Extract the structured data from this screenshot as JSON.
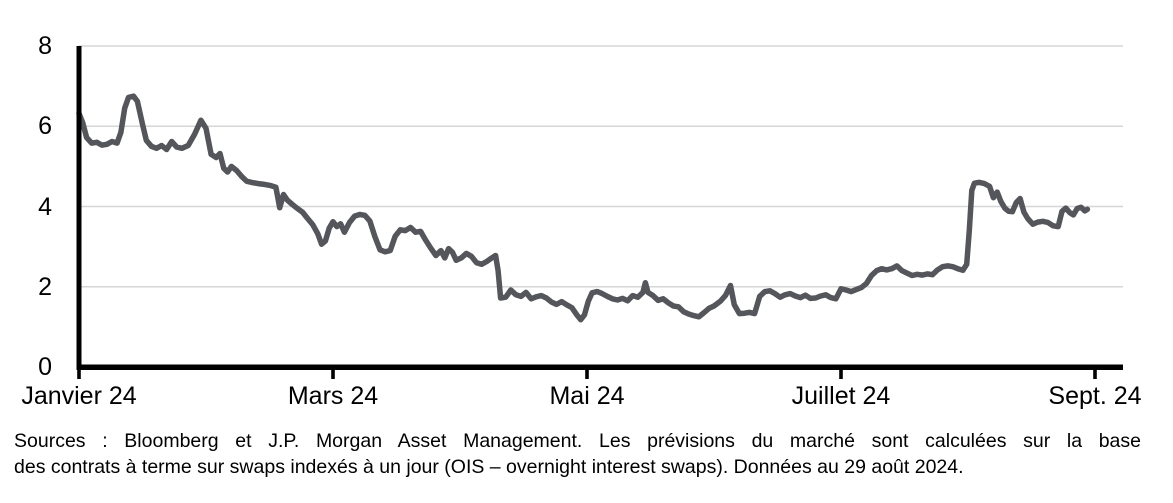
{
  "chart_data": {
    "type": "line",
    "title": "",
    "xlabel": "",
    "ylabel": "",
    "grid": true,
    "legend": "none",
    "x_axis": {
      "tick_labels": [
        "Janvier 24",
        "Mars 24",
        "Mai 24",
        "Juillet 24",
        "Sept. 24"
      ],
      "tick_positions_months": [
        0,
        2,
        4,
        6,
        8
      ],
      "range_months": [
        0,
        8.22
      ]
    },
    "y_axis": {
      "tick_labels": [
        "0",
        "2",
        "4",
        "6",
        "8"
      ],
      "ticks": [
        0,
        2,
        4,
        6,
        8
      ],
      "range": [
        0,
        8
      ],
      "gridline_ticks": [
        2,
        4,
        6,
        8
      ]
    },
    "series": [
      {
        "color": "#54565B",
        "points": [
          [
            0.0,
            6.32
          ],
          [
            0.03,
            6.08
          ],
          [
            0.06,
            5.72
          ],
          [
            0.1,
            5.58
          ],
          [
            0.14,
            5.6
          ],
          [
            0.18,
            5.53
          ],
          [
            0.22,
            5.55
          ],
          [
            0.26,
            5.62
          ],
          [
            0.3,
            5.58
          ],
          [
            0.33,
            5.85
          ],
          [
            0.36,
            6.45
          ],
          [
            0.39,
            6.72
          ],
          [
            0.43,
            6.75
          ],
          [
            0.46,
            6.62
          ],
          [
            0.5,
            6.05
          ],
          [
            0.53,
            5.65
          ],
          [
            0.57,
            5.5
          ],
          [
            0.61,
            5.45
          ],
          [
            0.65,
            5.52
          ],
          [
            0.69,
            5.42
          ],
          [
            0.73,
            5.62
          ],
          [
            0.77,
            5.48
          ],
          [
            0.81,
            5.45
          ],
          [
            0.86,
            5.52
          ],
          [
            0.91,
            5.8
          ],
          [
            0.96,
            6.15
          ],
          [
            1.0,
            5.95
          ],
          [
            1.04,
            5.3
          ],
          [
            1.08,
            5.22
          ],
          [
            1.11,
            5.32
          ],
          [
            1.14,
            4.95
          ],
          [
            1.17,
            4.86
          ],
          [
            1.2,
            5.0
          ],
          [
            1.24,
            4.9
          ],
          [
            1.28,
            4.75
          ],
          [
            1.32,
            4.63
          ],
          [
            1.36,
            4.6
          ],
          [
            1.41,
            4.57
          ],
          [
            1.46,
            4.55
          ],
          [
            1.51,
            4.52
          ],
          [
            1.55,
            4.48
          ],
          [
            1.58,
            3.97
          ],
          [
            1.61,
            4.3
          ],
          [
            1.64,
            4.16
          ],
          [
            1.68,
            4.05
          ],
          [
            1.72,
            3.95
          ],
          [
            1.76,
            3.86
          ],
          [
            1.8,
            3.7
          ],
          [
            1.84,
            3.55
          ],
          [
            1.88,
            3.32
          ],
          [
            1.91,
            3.06
          ],
          [
            1.94,
            3.14
          ],
          [
            1.97,
            3.46
          ],
          [
            2.0,
            3.62
          ],
          [
            2.03,
            3.5
          ],
          [
            2.06,
            3.57
          ],
          [
            2.09,
            3.36
          ],
          [
            2.13,
            3.6
          ],
          [
            2.17,
            3.76
          ],
          [
            2.21,
            3.8
          ],
          [
            2.25,
            3.78
          ],
          [
            2.29,
            3.64
          ],
          [
            2.33,
            3.25
          ],
          [
            2.37,
            2.92
          ],
          [
            2.41,
            2.87
          ],
          [
            2.45,
            2.9
          ],
          [
            2.49,
            3.26
          ],
          [
            2.53,
            3.42
          ],
          [
            2.57,
            3.4
          ],
          [
            2.61,
            3.48
          ],
          [
            2.65,
            3.36
          ],
          [
            2.69,
            3.38
          ],
          [
            2.73,
            3.16
          ],
          [
            2.77,
            2.96
          ],
          [
            2.81,
            2.78
          ],
          [
            2.85,
            2.9
          ],
          [
            2.88,
            2.72
          ],
          [
            2.91,
            2.95
          ],
          [
            2.94,
            2.86
          ],
          [
            2.97,
            2.66
          ],
          [
            3.01,
            2.72
          ],
          [
            3.05,
            2.83
          ],
          [
            3.09,
            2.76
          ],
          [
            3.13,
            2.6
          ],
          [
            3.17,
            2.56
          ],
          [
            3.21,
            2.63
          ],
          [
            3.25,
            2.72
          ],
          [
            3.28,
            2.78
          ],
          [
            3.3,
            2.4
          ],
          [
            3.32,
            1.72
          ],
          [
            3.36,
            1.74
          ],
          [
            3.4,
            1.92
          ],
          [
            3.44,
            1.8
          ],
          [
            3.48,
            1.76
          ],
          [
            3.52,
            1.86
          ],
          [
            3.56,
            1.7
          ],
          [
            3.6,
            1.75
          ],
          [
            3.64,
            1.78
          ],
          [
            3.68,
            1.72
          ],
          [
            3.72,
            1.62
          ],
          [
            3.76,
            1.56
          ],
          [
            3.8,
            1.63
          ],
          [
            3.84,
            1.55
          ],
          [
            3.88,
            1.48
          ],
          [
            3.92,
            1.3
          ],
          [
            3.95,
            1.18
          ],
          [
            3.98,
            1.3
          ],
          [
            4.01,
            1.64
          ],
          [
            4.04,
            1.85
          ],
          [
            4.08,
            1.88
          ],
          [
            4.12,
            1.83
          ],
          [
            4.16,
            1.76
          ],
          [
            4.2,
            1.7
          ],
          [
            4.24,
            1.67
          ],
          [
            4.28,
            1.71
          ],
          [
            4.32,
            1.65
          ],
          [
            4.36,
            1.78
          ],
          [
            4.4,
            1.74
          ],
          [
            4.44,
            1.86
          ],
          [
            4.46,
            2.1
          ],
          [
            4.48,
            1.86
          ],
          [
            4.52,
            1.78
          ],
          [
            4.56,
            1.66
          ],
          [
            4.6,
            1.7
          ],
          [
            4.64,
            1.6
          ],
          [
            4.68,
            1.52
          ],
          [
            4.72,
            1.5
          ],
          [
            4.76,
            1.38
          ],
          [
            4.8,
            1.32
          ],
          [
            4.84,
            1.28
          ],
          [
            4.88,
            1.25
          ],
          [
            4.92,
            1.35
          ],
          [
            4.96,
            1.46
          ],
          [
            5.0,
            1.52
          ],
          [
            5.05,
            1.64
          ],
          [
            5.09,
            1.78
          ],
          [
            5.13,
            2.03
          ],
          [
            5.16,
            1.55
          ],
          [
            5.2,
            1.33
          ],
          [
            5.24,
            1.34
          ],
          [
            5.28,
            1.36
          ],
          [
            5.32,
            1.33
          ],
          [
            5.36,
            1.76
          ],
          [
            5.4,
            1.88
          ],
          [
            5.44,
            1.9
          ],
          [
            5.48,
            1.83
          ],
          [
            5.52,
            1.74
          ],
          [
            5.56,
            1.8
          ],
          [
            5.6,
            1.83
          ],
          [
            5.64,
            1.77
          ],
          [
            5.68,
            1.73
          ],
          [
            5.72,
            1.79
          ],
          [
            5.76,
            1.71
          ],
          [
            5.8,
            1.72
          ],
          [
            5.84,
            1.77
          ],
          [
            5.88,
            1.8
          ],
          [
            5.92,
            1.73
          ],
          [
            5.96,
            1.7
          ],
          [
            6.0,
            1.95
          ],
          [
            6.04,
            1.92
          ],
          [
            6.08,
            1.88
          ],
          [
            6.12,
            1.93
          ],
          [
            6.16,
            1.98
          ],
          [
            6.2,
            2.08
          ],
          [
            6.24,
            2.28
          ],
          [
            6.28,
            2.4
          ],
          [
            6.32,
            2.45
          ],
          [
            6.36,
            2.42
          ],
          [
            6.4,
            2.45
          ],
          [
            6.44,
            2.52
          ],
          [
            6.48,
            2.4
          ],
          [
            6.52,
            2.34
          ],
          [
            6.56,
            2.28
          ],
          [
            6.6,
            2.31
          ],
          [
            6.64,
            2.29
          ],
          [
            6.68,
            2.32
          ],
          [
            6.72,
            2.3
          ],
          [
            6.76,
            2.42
          ],
          [
            6.8,
            2.5
          ],
          [
            6.84,
            2.52
          ],
          [
            6.88,
            2.5
          ],
          [
            6.92,
            2.45
          ],
          [
            6.96,
            2.41
          ],
          [
            6.99,
            2.56
          ],
          [
            7.01,
            3.4
          ],
          [
            7.03,
            4.4
          ],
          [
            7.05,
            4.58
          ],
          [
            7.09,
            4.6
          ],
          [
            7.13,
            4.57
          ],
          [
            7.17,
            4.5
          ],
          [
            7.2,
            4.22
          ],
          [
            7.23,
            4.36
          ],
          [
            7.26,
            4.12
          ],
          [
            7.29,
            3.96
          ],
          [
            7.32,
            3.88
          ],
          [
            7.35,
            3.87
          ],
          [
            7.38,
            4.1
          ],
          [
            7.41,
            4.2
          ],
          [
            7.44,
            3.86
          ],
          [
            7.47,
            3.7
          ],
          [
            7.51,
            3.56
          ],
          [
            7.55,
            3.61
          ],
          [
            7.59,
            3.63
          ],
          [
            7.63,
            3.6
          ],
          [
            7.67,
            3.52
          ],
          [
            7.71,
            3.5
          ],
          [
            7.74,
            3.88
          ],
          [
            7.77,
            3.96
          ],
          [
            7.8,
            3.85
          ],
          [
            7.83,
            3.79
          ],
          [
            7.86,
            3.95
          ],
          [
            7.89,
            3.98
          ],
          [
            7.92,
            3.89
          ],
          [
            7.94,
            3.93
          ]
        ]
      }
    ]
  },
  "caption": {
    "line1": "Sources : Bloomberg et J.P. Morgan Asset Management. Les prévisions du marché sont calculées sur la base",
    "line2": "des contrats à terme sur swaps indexés à un jour (OIS – overnight interest swaps). Données au 29 août 2024."
  },
  "colors": {
    "line": "#54565B",
    "gridline": "#D6D6D6",
    "axis": "#000000",
    "text": "#000000",
    "background": "#FFFFFF"
  }
}
